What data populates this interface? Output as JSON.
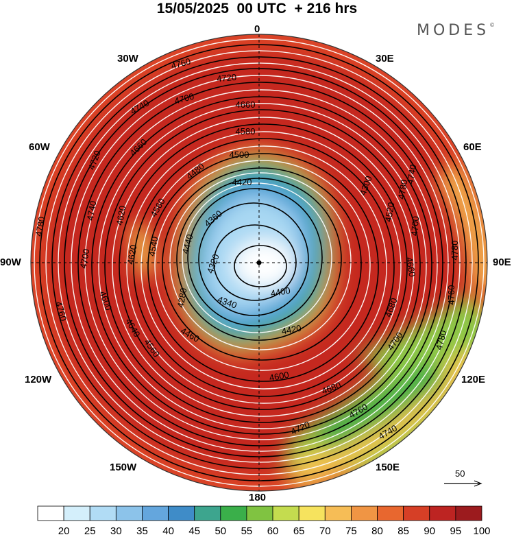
{
  "title": "15/05/2025  00 UTC  + 216 hrs",
  "brand": "MODES",
  "brand_mark": "©",
  "longitude_labels": {
    "n": "0",
    "ne30": "30E",
    "ne60": "60E",
    "e": "90E",
    "se120": "120E",
    "se150": "150E",
    "s": "180",
    "sw150": "150W",
    "sw120": "120W",
    "w": "90W",
    "nw60": "60W",
    "nw30": "30W"
  },
  "wind_scale": {
    "label": "50"
  },
  "colorbar": {
    "labels": [
      "20",
      "25",
      "30",
      "35",
      "40",
      "45",
      "50",
      "55",
      "60",
      "65",
      "70",
      "75",
      "80",
      "85",
      "90",
      "95",
      "100"
    ],
    "colors": [
      "#ffffff",
      "#d4effb",
      "#b1dcf5",
      "#8cc3ea",
      "#64a6dd",
      "#3f8cc8",
      "#3da58e",
      "#3aaf4a",
      "#80c341",
      "#c4dc4f",
      "#f6e35e",
      "#f6bd56",
      "#f09544",
      "#e8672f",
      "#d63f26",
      "#bd2422",
      "#9c1b1e"
    ]
  },
  "contour_labels": [
    "4760",
    "4720",
    "4700",
    "4740",
    "4660",
    "4580",
    "4500",
    "4720",
    "4660",
    "4480",
    "4420",
    "4740",
    "4620",
    "4360",
    "4440",
    "4560",
    "4320",
    "4780",
    "4700",
    "4620",
    "4540",
    "4280",
    "4340",
    "4460",
    "4400",
    "4760",
    "4600",
    "4780",
    "4740",
    "4640",
    "4420",
    "4560",
    "4680",
    "4700",
    "4720",
    "4760",
    "4740",
    "4780",
    "4600",
    "4660",
    "4780",
    "4520",
    "4300",
    "4700",
    "4760",
    "4680"
  ],
  "contour_levels_approx": [
    4280,
    4300,
    4320,
    4340,
    4360,
    4400,
    4420,
    4440,
    4460,
    4480,
    4500,
    4520,
    4540,
    4560,
    4580,
    4600,
    4620,
    4640,
    4660,
    4680,
    4700,
    4720,
    4740,
    4760,
    4780
  ]
}
